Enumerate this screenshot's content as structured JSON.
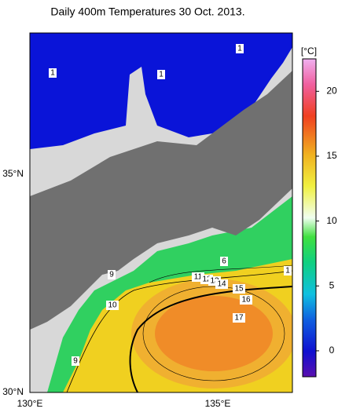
{
  "title": "Daily 400m Temperatures 30 Oct. 2013.",
  "axes": {
    "lat_labels": [
      "35°N",
      "30°N"
    ],
    "lon_labels": [
      "130°E",
      "135°E"
    ]
  },
  "colorbar": {
    "unit": "[°C]",
    "lim": [
      -2,
      22.5
    ],
    "ticks": [
      0,
      5,
      10,
      15,
      20
    ]
  },
  "contour_labels": [
    "1",
    "1",
    "1",
    "6",
    "9",
    "11",
    "12",
    "13",
    "14",
    "15",
    "16",
    "17",
    "10",
    "9",
    "1"
  ]
}
